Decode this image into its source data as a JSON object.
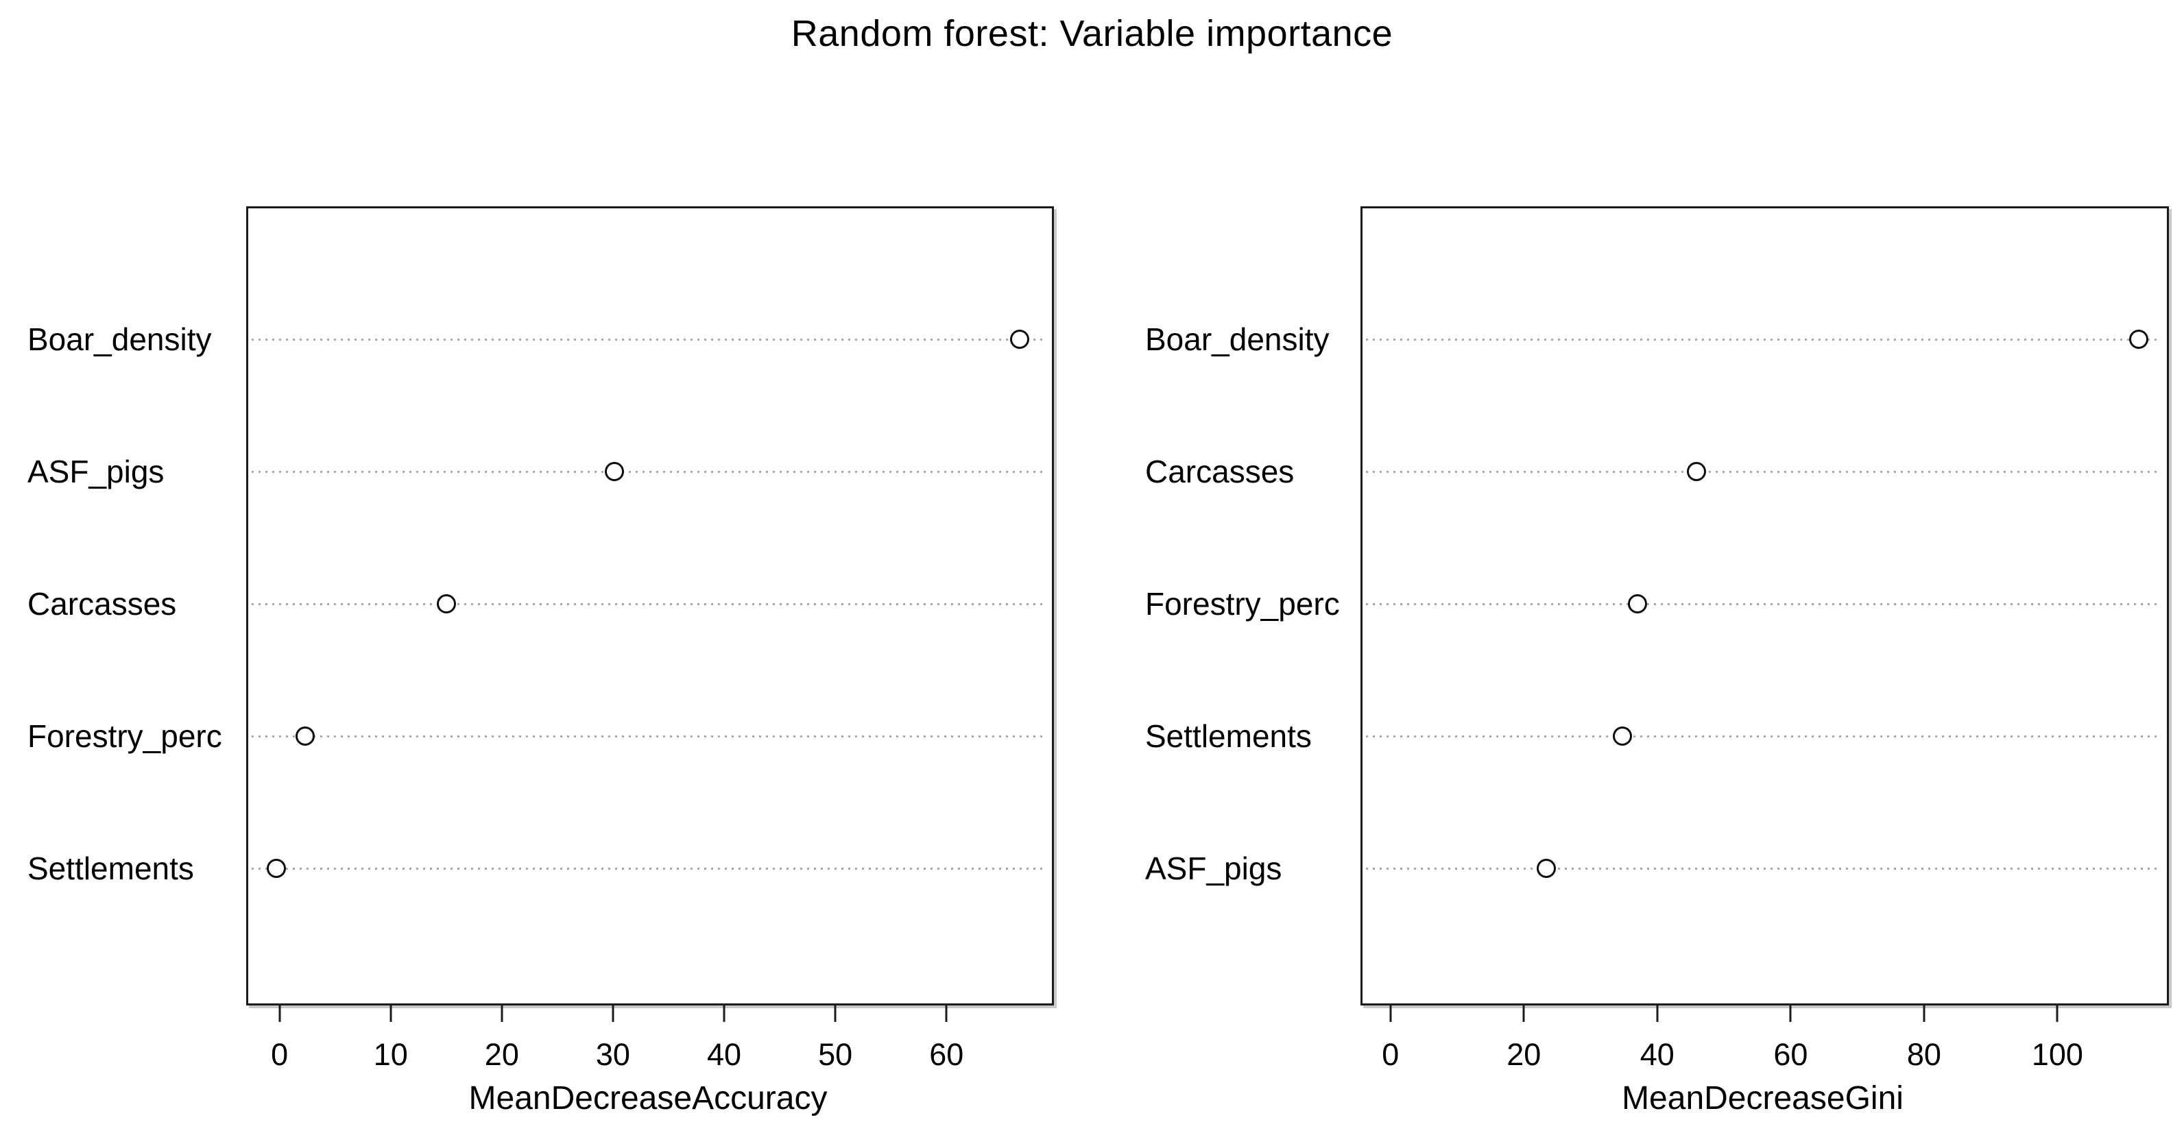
{
  "page": {
    "title": "Random forest: Variable importance"
  },
  "chart_data": {
    "type": "scatter",
    "subtype": "dotchart",
    "title": "Random forest: Variable importance",
    "grid": "horizontal dotted lines per category",
    "legend": "none",
    "marker": "open-circle",
    "panels": [
      {
        "name": "accuracy-panel",
        "xlabel": "MeanDecreaseAccuracy",
        "categories": [
          "Boar_density",
          "ASF_pigs",
          "Carcasses",
          "Forestry_perc",
          "Settlements"
        ],
        "values": [
          66.6,
          30.1,
          15.0,
          2.3,
          -0.3
        ],
        "xticks": [
          0,
          10,
          20,
          30,
          40,
          50,
          60
        ],
        "xlim": [
          -3.0,
          69.3
        ]
      },
      {
        "name": "gini-panel",
        "xlabel": "MeanDecreaseGini",
        "categories": [
          "Boar_density",
          "Carcasses",
          "Forestry_perc",
          "Settlements",
          "ASF_pigs"
        ],
        "values": [
          112.2,
          45.9,
          37.0,
          34.8,
          23.4
        ],
        "xticks": [
          0,
          20,
          40,
          60,
          80,
          100
        ],
        "xlim": [
          -4.5,
          116.1
        ]
      }
    ]
  },
  "colors": {
    "background": "#ffffff",
    "text": "#000000",
    "box_border": "#1b1b1b",
    "grid_dots": "#a8a8a8",
    "point_stroke": "#0d0d0d",
    "point_fill": "#ffffff"
  }
}
